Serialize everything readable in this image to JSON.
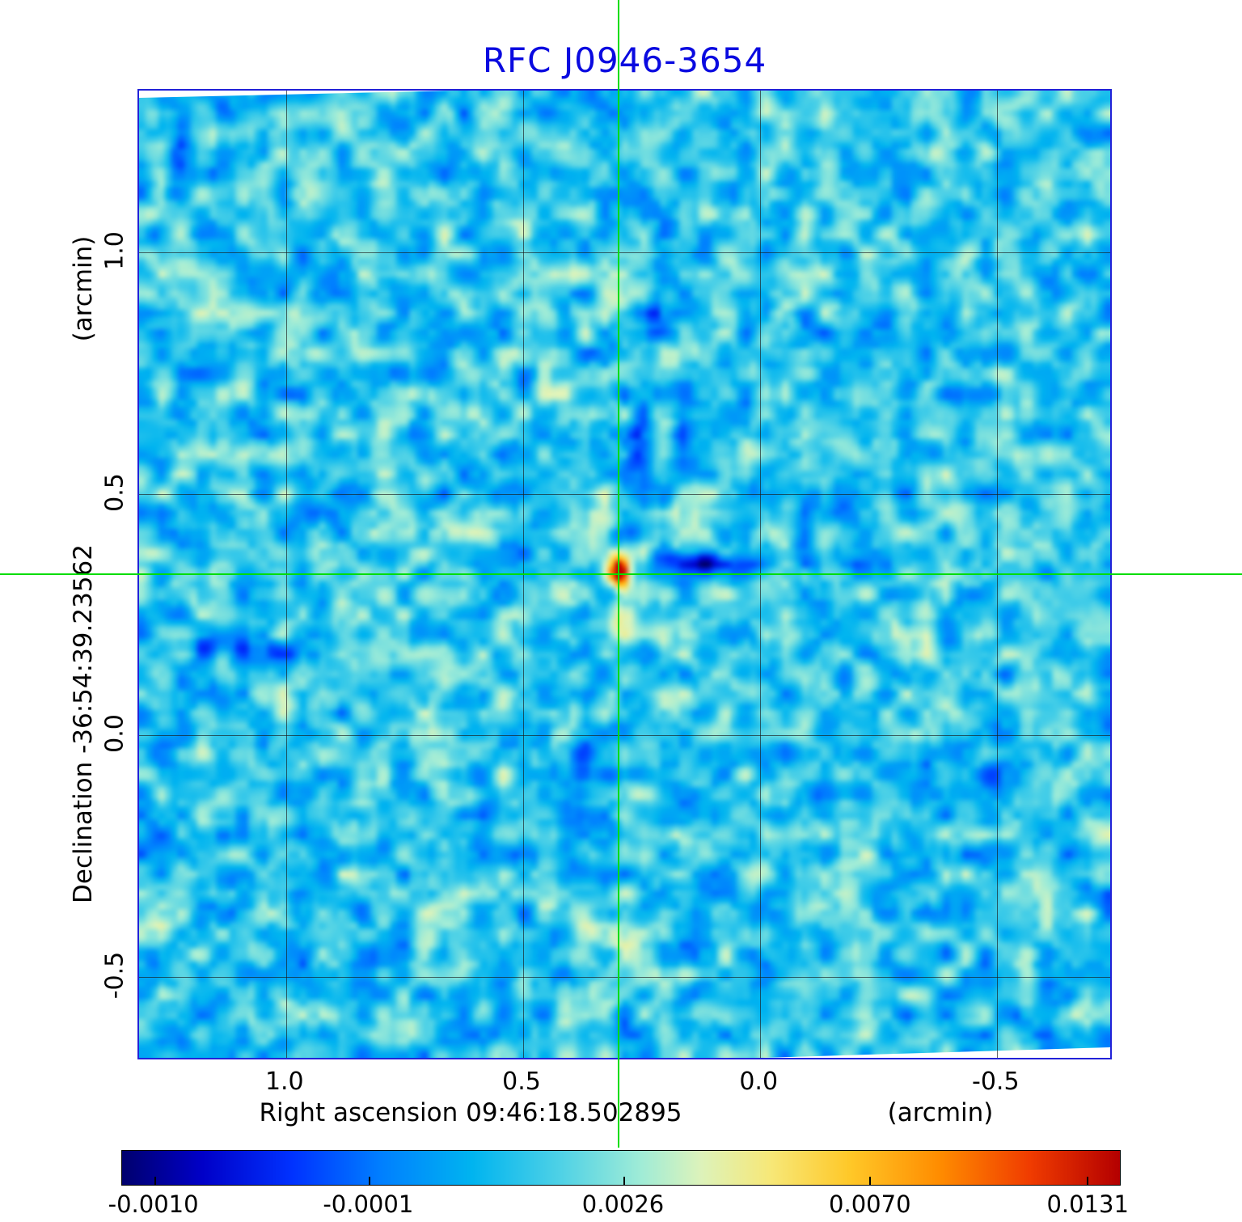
{
  "title": "RFC J0946-3654",
  "colors": {
    "title": "#0a0ae0",
    "frame": "#2222d8",
    "crosshair": "#00dd00",
    "grid": "#1a1a1a",
    "background": "#ffffff"
  },
  "chart_data": {
    "type": "heatmap",
    "title": "RFC J0946-3654",
    "xlabel": "Right ascension  09:46:18.502895",
    "xunit": "(arcmin)",
    "ylabel": "Declination  -36:54:39.23562",
    "yunit": "(arcmin)",
    "x_range": [
      1.31,
      -0.745
    ],
    "y_range": [
      1.335,
      -0.675
    ],
    "x_ticks": [
      {
        "label": "1.0",
        "value": 1.0
      },
      {
        "label": "0.5",
        "value": 0.5
      },
      {
        "label": "0.0",
        "value": 0.0
      },
      {
        "label": "-0.5",
        "value": -0.5
      }
    ],
    "y_ticks": [
      {
        "label": "1.0",
        "value": 1.0
      },
      {
        "label": "0.5",
        "value": 0.5
      },
      {
        "label": "0.0",
        "value": 0.0
      },
      {
        "label": "-0.5",
        "value": -0.5
      }
    ],
    "grid": true,
    "crosshair": {
      "x": 0.295,
      "y": 0.33
    },
    "source": {
      "x": 0.295,
      "y": 0.33,
      "peak": 0.0131
    },
    "value_min": -0.001,
    "value_max": 0.0131,
    "colorbar": {
      "ticks": [
        {
          "label": "-0.0010",
          "pos": 0.032
        },
        {
          "label": "-0.0001",
          "pos": 0.247
        },
        {
          "label": "0.0026",
          "pos": 0.502
        },
        {
          "label": "0.0070",
          "pos": 0.749
        },
        {
          "label": "0.0131",
          "pos": 0.967
        }
      ],
      "stops": [
        {
          "p": 0.0,
          "c": "#00006e"
        },
        {
          "p": 0.08,
          "c": "#0000c8"
        },
        {
          "p": 0.17,
          "c": "#0032ff"
        },
        {
          "p": 0.26,
          "c": "#0080ff"
        },
        {
          "p": 0.35,
          "c": "#00b4f0"
        },
        {
          "p": 0.44,
          "c": "#50d2e6"
        },
        {
          "p": 0.52,
          "c": "#a0ecd7"
        },
        {
          "p": 0.58,
          "c": "#ddf3bb"
        },
        {
          "p": 0.65,
          "c": "#f7e878"
        },
        {
          "p": 0.73,
          "c": "#ffc828"
        },
        {
          "p": 0.82,
          "c": "#ff8c00"
        },
        {
          "p": 0.91,
          "c": "#f03c00"
        },
        {
          "p": 1.0,
          "c": "#b40000"
        }
      ]
    }
  }
}
